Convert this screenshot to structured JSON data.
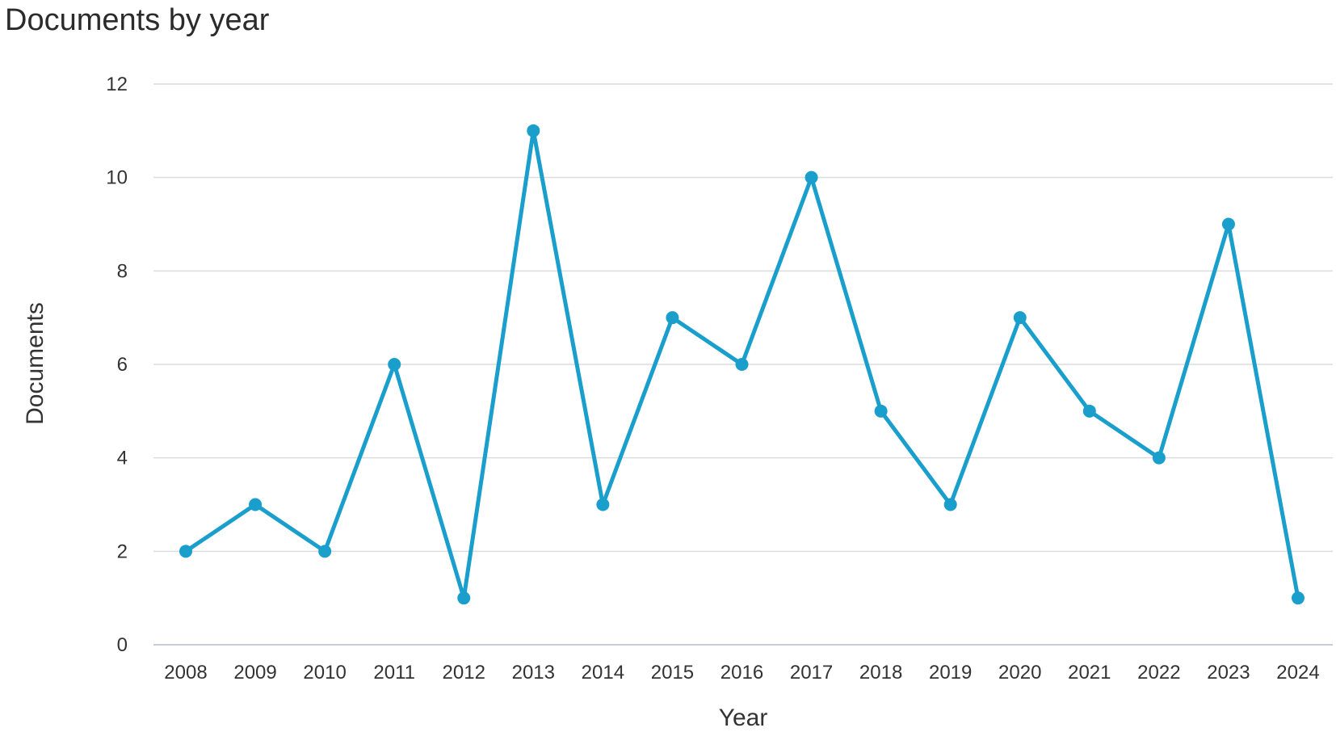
{
  "chart_data": {
    "type": "line",
    "title": "Documents by year",
    "xlabel": "Year",
    "ylabel": "Documents",
    "categories": [
      "2008",
      "2009",
      "2010",
      "2011",
      "2012",
      "2013",
      "2014",
      "2015",
      "2016",
      "2017",
      "2018",
      "2019",
      "2020",
      "2021",
      "2022",
      "2023",
      "2024"
    ],
    "values": [
      2,
      3,
      2,
      6,
      1,
      11,
      3,
      7,
      6,
      10,
      5,
      3,
      7,
      5,
      4,
      9,
      1
    ],
    "ylim": [
      0,
      12
    ],
    "yticks": [
      0,
      2,
      4,
      6,
      8,
      10,
      12
    ],
    "grid": true,
    "legend": "none",
    "colors": {
      "line": "#1a9fcc",
      "grid": "#dcdcdc",
      "axis": "#c8cdd6"
    }
  }
}
